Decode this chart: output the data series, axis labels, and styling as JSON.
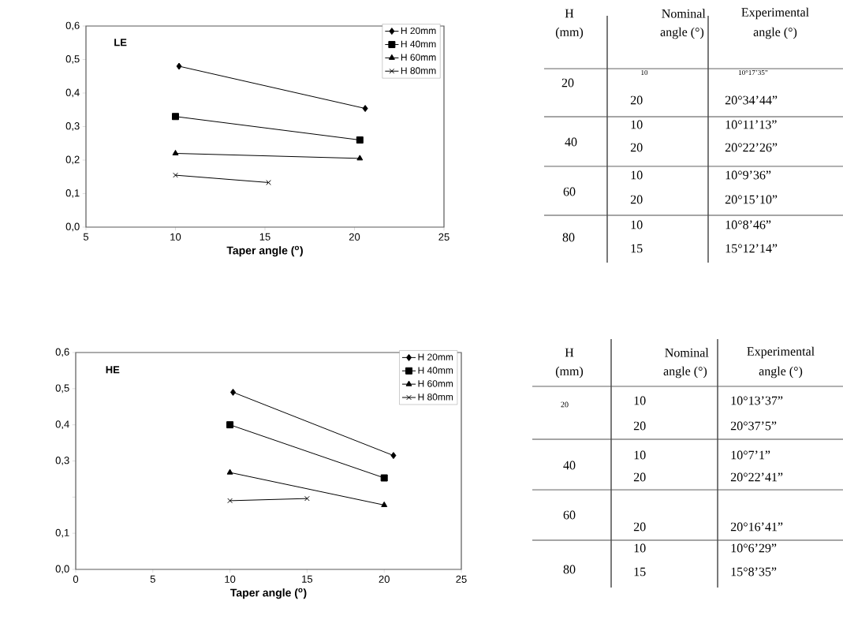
{
  "chart_data": [
    {
      "type": "line",
      "annotations": [
        "LE"
      ],
      "xlabel": "Taper angle ($^{o}$)",
      "xlim": [
        5,
        25
      ],
      "xticks": [
        5,
        10,
        15,
        20,
        25
      ],
      "ylim": [
        0,
        0.6
      ],
      "yticks": [
        {
          "value": 0,
          "label": "0,0"
        },
        {
          "value": 0.1,
          "label": "0,1"
        },
        {
          "value": 0.2,
          "label": "0,2"
        },
        {
          "value": 0.3,
          "label": "0,3"
        },
        {
          "value": 0.4,
          "label": "0,4"
        },
        {
          "value": 0.5,
          "label": "0,5"
        },
        {
          "value": 0.6,
          "label": "0,6"
        }
      ],
      "legend": "top right",
      "series": [
        {
          "name": "H 20mm",
          "color": "#000000",
          "marker": "diamond",
          "x": [
            10.2,
            20.6
          ],
          "values": [
            0.48,
            0.354
          ]
        },
        {
          "name": "H 40mm",
          "color": "#000000",
          "marker": "square",
          "x": [
            10,
            20.3
          ],
          "values": [
            0.33,
            0.26
          ]
        },
        {
          "name": "H 60mm",
          "color": "#000000",
          "marker": "triangle",
          "x": [
            10,
            20.3
          ],
          "values": [
            0.22,
            0.205
          ]
        },
        {
          "name": "H 80mm",
          "color": "#000000",
          "marker": "cross",
          "x": [
            10,
            15.2
          ],
          "values": [
            0.155,
            0.133
          ]
        }
      ]
    },
    {
      "type": "other",
      "annotations": [
        "H",
        "Nominal",
        "Experimental",
        "(mm)",
        "angle (°)",
        "angle (°)",
        "20",
        "10",
        "10°17’35”",
        "20",
        "20°34’44”",
        "40",
        "10",
        "10°11’13”",
        "20",
        "20°22’26”",
        "60",
        "10",
        "10°9’36”",
        "20",
        "20°15’10”",
        "80",
        "10",
        "10°8’46”",
        "15",
        "15°12’14”"
      ]
    },
    {
      "type": "line",
      "annotations": [
        "HE"
      ],
      "xlabel": "Taper angle ($^{o}$)",
      "xlim": [
        0,
        25
      ],
      "xticks": [
        0,
        5,
        10,
        15,
        20,
        25
      ],
      "ylim": [
        0,
        0.6
      ],
      "yticks": [
        {
          "value": 0,
          "label": "0,0"
        },
        {
          "value": 0.1,
          "label": "0,1"
        },
        {
          "value": 0.2,
          "label": null
        },
        {
          "value": 0.3,
          "label": "0,3"
        },
        {
          "value": 0.4,
          "label": "0,4"
        },
        {
          "value": 0.5,
          "label": "0,5"
        },
        {
          "value": 0.6,
          "label": "0,6"
        }
      ],
      "legend": "top right",
      "series": [
        {
          "name": "H 20mm",
          "color": "#000000",
          "marker": "diamond",
          "x": [
            10.2,
            20.6
          ],
          "values": [
            0.49,
            0.315
          ]
        },
        {
          "name": "H 40mm",
          "color": "#000000",
          "marker": "square",
          "x": [
            10,
            20
          ],
          "values": [
            0.4,
            0.253
          ]
        },
        {
          "name": "H 60mm",
          "color": "#000000",
          "marker": "triangle",
          "x": [
            10,
            20
          ],
          "values": [
            0.268,
            0.178
          ]
        },
        {
          "name": "H 80mm",
          "color": "#000000",
          "marker": "cross",
          "x": [
            10,
            15
          ],
          "values": [
            0.19,
            0.196
          ]
        }
      ]
    },
    {
      "type": "other",
      "annotations": [
        "H",
        "Nominal",
        "Experimental",
        "(mm)",
        "angle (°)",
        "angle (°)",
        "20",
        "10",
        "10°13’37”",
        "20",
        "20°37’5”",
        "40",
        "10",
        "10°7’1”",
        "20",
        "20°22’41”",
        "60",
        "20",
        "20°16’41”",
        "80",
        "10",
        "10°6’29”",
        "15",
        "15°8’35”"
      ]
    }
  ]
}
